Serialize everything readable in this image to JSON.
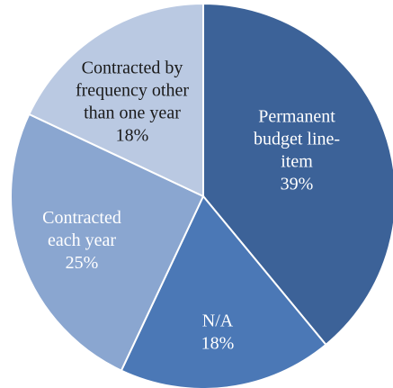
{
  "chart_data": {
    "type": "pie",
    "title": "",
    "slices": [
      {
        "label": "Permanent budget line-item",
        "label_lines": [
          "Permanent",
          "budget line-",
          "item"
        ],
        "value": 39,
        "value_label": "39%",
        "color": "#3c6298",
        "label_color": "#ffffff"
      },
      {
        "label": "N/A",
        "label_lines": [
          "N/A"
        ],
        "value": 18,
        "value_label": "18%",
        "color": "#4b78b6",
        "label_color": "#ffffff"
      },
      {
        "label": "Contracted each year",
        "label_lines": [
          "Contracted",
          "each year"
        ],
        "value": 25,
        "value_label": "25%",
        "color": "#8aa6d0",
        "label_color": "#ffffff"
      },
      {
        "label": "Contracted by frequency other than one year",
        "label_lines": [
          "Contracted by",
          "frequency other",
          "than one year"
        ],
        "value": 18,
        "value_label": "18%",
        "color": "#bac9e2",
        "label_color": "#1a1a1a"
      }
    ],
    "legend": "none",
    "start_angle": "12 o'clock",
    "direction": "clockwise"
  }
}
